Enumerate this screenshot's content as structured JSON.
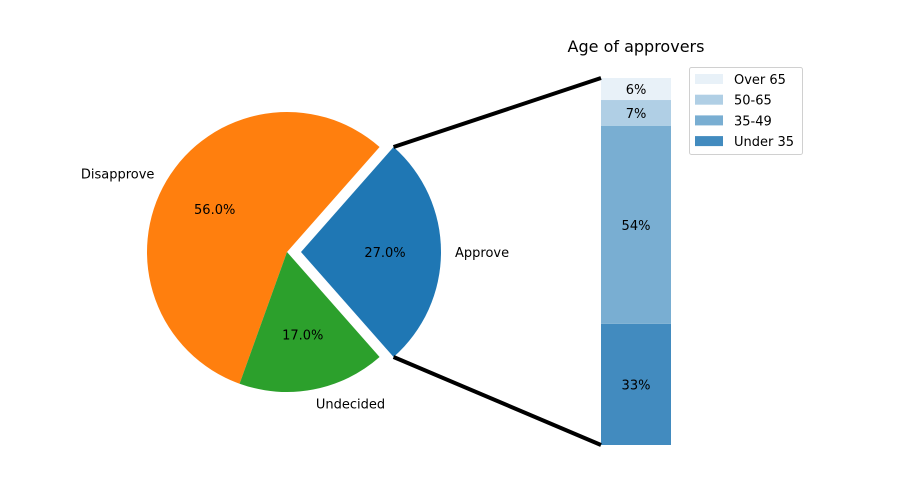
{
  "chart_data": [
    {
      "type": "pie",
      "labels": [
        "Approve",
        "Disapprove",
        "Undecided"
      ],
      "values": [
        27.0,
        56.0,
        17.0
      ],
      "value_labels": [
        "27.0%",
        "56.0%",
        "17.0%"
      ],
      "colors": [
        "#1f77b4",
        "#ff7f0e",
        "#2ca02c"
      ],
      "explode": [
        0.1,
        0,
        0
      ],
      "start_angle_deg": -48.6
    },
    {
      "type": "bar",
      "stacked": true,
      "title": "Age of approvers",
      "categories": [
        "Under 35",
        "35-49",
        "50-65",
        "Over 65"
      ],
      "values": [
        33,
        54,
        7,
        6
      ],
      "value_labels": [
        "33%",
        "54%",
        "7%",
        "6%"
      ],
      "colors": [
        "#428bbf",
        "#79aed2",
        "#b0cfe5",
        "#e8f1f8"
      ],
      "legend": {
        "placement": "top-right",
        "entries": [
          "Over 65",
          "50-65",
          "35-49",
          "Under 35"
        ]
      },
      "connector_color": "#000000"
    }
  ]
}
